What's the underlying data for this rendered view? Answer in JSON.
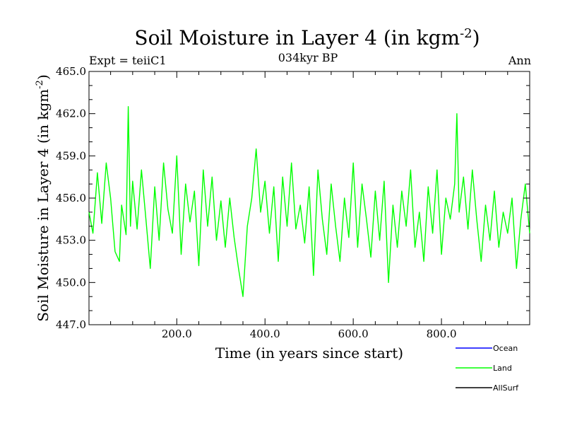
{
  "chart_data": {
    "type": "line",
    "title_main": "Soil Moisture in Layer 4 (in kgm",
    "title_exp": "-2",
    "title_close": ")",
    "subtitle_left": "Expt = teiiC1",
    "subtitle_center": "034kyr BP",
    "subtitle_right": "Ann",
    "xlabel": "Time (in years since start)",
    "ylabel_main": "Soil Moisture in Layer 4 (in kgm",
    "ylabel_exp": "-2",
    "ylabel_close": ")",
    "xlim": [
      1,
      1000
    ],
    "ylim": [
      447.0,
      465.0
    ],
    "xticks": [
      200,
      400,
      600,
      800
    ],
    "xtick_labels": [
      "200.0",
      "400.0",
      "600.0",
      "800.0"
    ],
    "yticks": [
      447,
      450,
      453,
      456,
      459,
      462,
      465
    ],
    "ytick_labels": [
      "447.0",
      "450.0",
      "453.0",
      "456.0",
      "459.0",
      "462.0",
      "465.0"
    ],
    "legend_placement": "bottom-right",
    "legend": [
      {
        "name": "Ocean",
        "color": "#0000ff"
      },
      {
        "name": "Land",
        "color": "#00ff00"
      },
      {
        "name": "AllSurf",
        "color": "#000000"
      }
    ],
    "series": [
      {
        "name": "Land",
        "color": "#00ff00",
        "x": [
          1,
          10,
          20,
          30,
          40,
          50,
          60,
          70,
          75,
          85,
          90,
          95,
          100,
          110,
          120,
          130,
          140,
          150,
          160,
          170,
          180,
          190,
          200,
          210,
          220,
          230,
          240,
          250,
          260,
          270,
          280,
          290,
          300,
          310,
          320,
          330,
          340,
          350,
          360,
          370,
          380,
          390,
          400,
          410,
          420,
          430,
          440,
          450,
          460,
          470,
          480,
          490,
          500,
          510,
          520,
          530,
          540,
          550,
          560,
          570,
          580,
          590,
          600,
          610,
          620,
          630,
          640,
          650,
          660,
          670,
          680,
          690,
          700,
          710,
          720,
          730,
          740,
          750,
          760,
          770,
          780,
          790,
          800,
          810,
          820,
          830,
          835,
          840,
          850,
          860,
          870,
          880,
          890,
          900,
          910,
          920,
          930,
          940,
          950,
          960,
          970,
          980,
          990,
          1000
        ],
        "y": [
          455.0,
          453.5,
          457.8,
          454.2,
          458.5,
          456.0,
          452.2,
          451.5,
          455.5,
          453.4,
          462.5,
          454.0,
          457.2,
          453.8,
          458.0,
          454.5,
          451.0,
          456.8,
          453.0,
          458.5,
          455.2,
          453.5,
          459.0,
          452.0,
          457.0,
          454.3,
          456.5,
          451.2,
          458.0,
          454.0,
          457.5,
          453.0,
          455.8,
          452.5,
          456.0,
          453.2,
          451.0,
          449.0,
          454.0,
          456.0,
          459.5,
          455.0,
          457.2,
          453.5,
          456.8,
          451.5,
          457.5,
          454.0,
          458.5,
          453.8,
          455.5,
          452.8,
          456.8,
          450.5,
          458.0,
          454.5,
          452.0,
          457.0,
          454.0,
          451.5,
          456.0,
          453.2,
          458.5,
          452.5,
          457.0,
          454.5,
          451.8,
          456.5,
          453.0,
          457.2,
          450.0,
          455.5,
          452.5,
          456.5,
          454.0,
          458.0,
          452.5,
          455.0,
          451.5,
          456.8,
          453.5,
          458.0,
          452.0,
          456.0,
          454.5,
          457.0,
          462.0,
          455.0,
          457.5,
          453.8,
          458.0,
          454.5,
          451.5,
          455.5,
          453.0,
          456.5,
          452.5,
          455.0,
          453.5,
          456.0,
          451.0,
          454.5,
          457.0,
          453.5
        ]
      }
    ]
  }
}
